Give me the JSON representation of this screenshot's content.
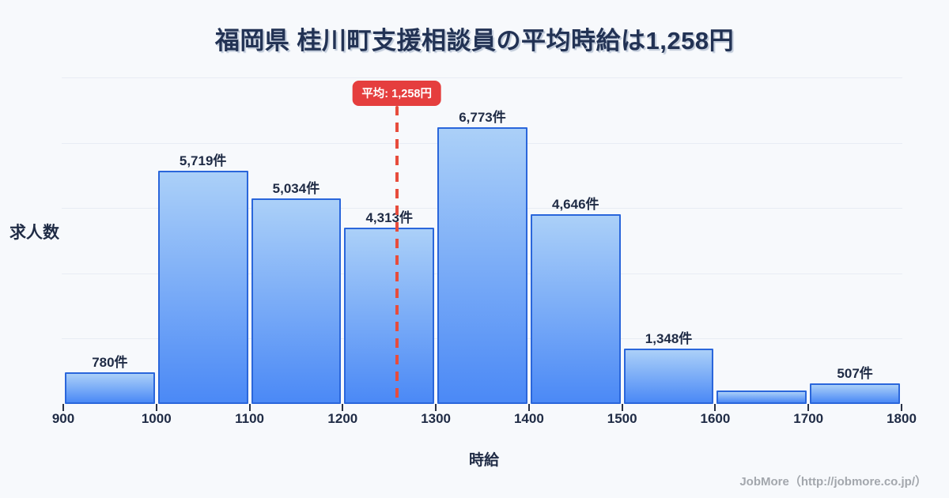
{
  "title": "福岡県 桂川町支援相談員の平均時給は1,258円",
  "mean_badge_label": "平均: 1,258円",
  "footer": "JobMore（http://jobmore.co.jp/）",
  "chart_data": {
    "type": "bar",
    "subtype": "histogram",
    "title": "福岡県 桂川町支援相談員の平均時給は1,258円",
    "xlabel": "時給",
    "ylabel": "求人数",
    "bin_edges": [
      900,
      1000,
      1100,
      1200,
      1300,
      1400,
      1500,
      1600,
      1700,
      1800
    ],
    "x_tick_labels": [
      "900",
      "1000",
      "1100",
      "1200",
      "1300",
      "1400",
      "1500",
      "1600",
      "1700",
      "1800"
    ],
    "values": [
      780,
      5719,
      5034,
      4313,
      6773,
      4646,
      1348,
      330,
      507
    ],
    "bar_labels": [
      "780件",
      "5,719件",
      "5,034件",
      "4,313件",
      "6,773件",
      "4,646件",
      "1,348件",
      "",
      "507件"
    ],
    "mean": 1258,
    "xlim": [
      900,
      1800
    ],
    "ylim": [
      0,
      8000
    ],
    "gridline_values": [
      1600,
      3200,
      4800,
      6400,
      8000
    ],
    "grid": true,
    "legend": false
  },
  "colors": {
    "background": "#f7f9fc",
    "title_text": "#223254",
    "label_text": "#1f2b45",
    "bar_fill_top": "#abd0f8",
    "bar_fill_bottom": "#4b89f6",
    "bar_border": "#2a66db",
    "gridline": "#e8ecf4",
    "mean_line": "#e74c3c",
    "mean_badge_bg": "#e53e3e",
    "mean_badge_text": "#ffffff",
    "tick_mark": "#2a3245",
    "footer_text": "#a3a7ad"
  }
}
